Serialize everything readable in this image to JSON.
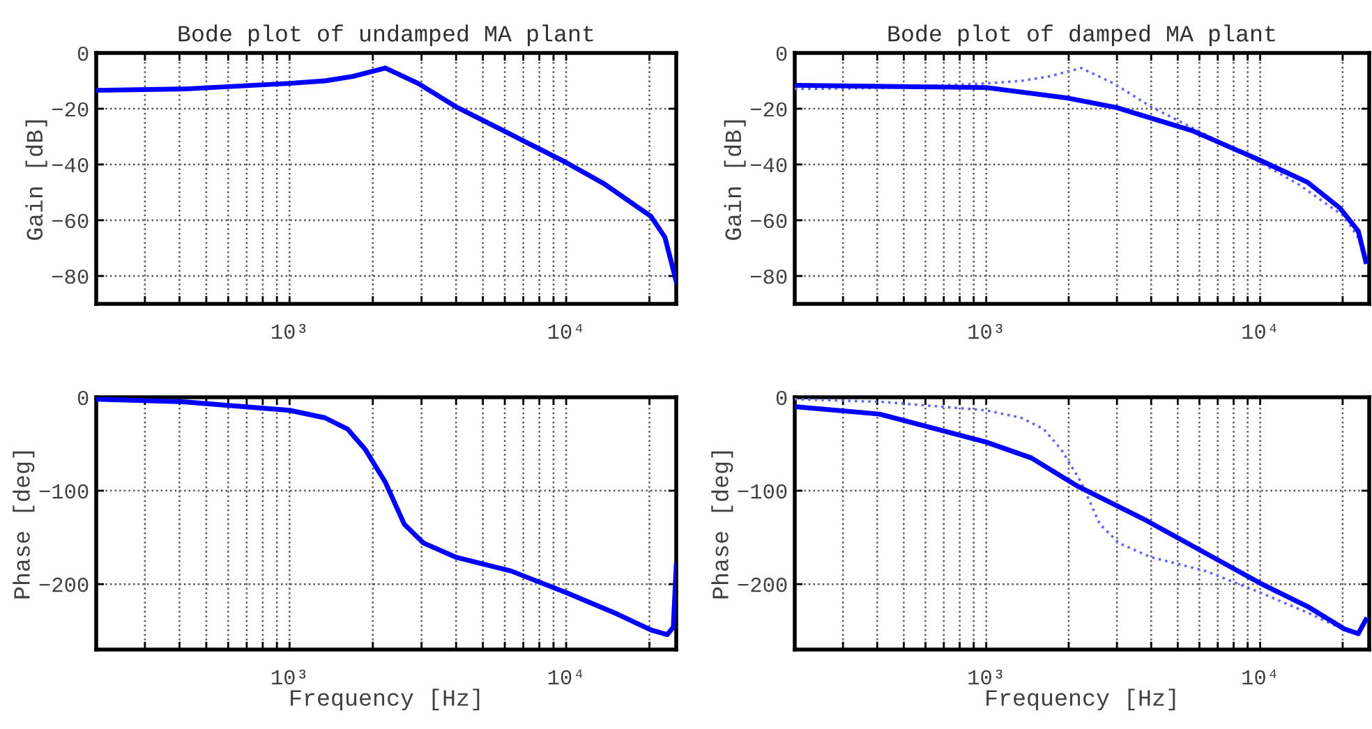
{
  "chart_data": [
    {
      "type": "line",
      "title": "Bode plot of undamped MA plant",
      "ylabel": "Gain [dB]",
      "log": "x",
      "grid": true,
      "legend": false,
      "xlim": [
        200,
        25000
      ],
      "ylim": [
        -90,
        0
      ],
      "yticks": [
        -80,
        -60,
        -40,
        -20,
        0
      ],
      "xticks": [
        {
          "value": 300,
          "label": null
        },
        {
          "value": 400,
          "label": null
        },
        {
          "value": 500,
          "label": null
        },
        {
          "value": 600,
          "label": null
        },
        {
          "value": 700,
          "label": null
        },
        {
          "value": 800,
          "label": null
        },
        {
          "value": 900,
          "label": null
        },
        {
          "value": 1000,
          "label": "10³"
        },
        {
          "value": 2000,
          "label": null
        },
        {
          "value": 3000,
          "label": null
        },
        {
          "value": 4000,
          "label": null
        },
        {
          "value": 5000,
          "label": null
        },
        {
          "value": 6000,
          "label": null
        },
        {
          "value": 7000,
          "label": null
        },
        {
          "value": 8000,
          "label": null
        },
        {
          "value": 9000,
          "label": null
        },
        {
          "value": 10000,
          "label": "10⁴"
        },
        {
          "value": 20000,
          "label": null
        }
      ],
      "series": [
        {
          "color": "#0000ff",
          "line_style": "solid",
          "x": [
            200,
            420,
            1000,
            1343,
            1694,
            2220,
            2915,
            3980,
            6330,
            10000,
            13700,
            20250,
            22750,
            25000
          ],
          "values": [
            -13.4,
            -12.9,
            -10.9,
            -10.0,
            -8.4,
            -5.4,
            -10.9,
            -19.2,
            -29.3,
            -39.3,
            -46.9,
            -58.6,
            -66.1,
            -82
          ]
        }
      ]
    },
    {
      "type": "line",
      "title": "Bode plot of damped MA plant",
      "ylabel": "Gain [dB]",
      "log": "x",
      "grid": true,
      "legend": false,
      "xlim": [
        200,
        25000
      ],
      "ylim": [
        -90,
        0
      ],
      "yticks": [
        -80,
        -60,
        -40,
        -20,
        0
      ],
      "xticks": [
        {
          "value": 300,
          "label": null
        },
        {
          "value": 400,
          "label": null
        },
        {
          "value": 500,
          "label": null
        },
        {
          "value": 600,
          "label": null
        },
        {
          "value": 700,
          "label": null
        },
        {
          "value": 800,
          "label": null
        },
        {
          "value": 900,
          "label": null
        },
        {
          "value": 1000,
          "label": "10³"
        },
        {
          "value": 2000,
          "label": null
        },
        {
          "value": 3000,
          "label": null
        },
        {
          "value": 4000,
          "label": null
        },
        {
          "value": 5000,
          "label": null
        },
        {
          "value": 6000,
          "label": null
        },
        {
          "value": 7000,
          "label": null
        },
        {
          "value": 8000,
          "label": null
        },
        {
          "value": 9000,
          "label": null
        },
        {
          "value": 10000,
          "label": "10⁴"
        },
        {
          "value": 20000,
          "label": null
        }
      ],
      "series": [
        {
          "color": "#6666ff",
          "line_style": "dotted",
          "x": [
            200,
            420,
            1000,
            1343,
            1694,
            2220,
            2915,
            3980,
            6330,
            10000,
            13700,
            20250,
            22750,
            24300
          ],
          "values": [
            -12.9,
            -12.6,
            -10.9,
            -10.0,
            -8.4,
            -5.4,
            -10.9,
            -19.2,
            -29.3,
            -39.3,
            -46.9,
            -58.6,
            -66.1,
            -74
          ]
        },
        {
          "color": "#0000ff",
          "line_style": "solid",
          "x": [
            200,
            1000,
            1991,
            2990,
            5660,
            10000,
            14900,
            19530,
            22800,
            24300
          ],
          "values": [
            -11.6,
            -12.4,
            -16.2,
            -19.6,
            -27.9,
            -38.5,
            -46.4,
            -55.6,
            -63.9,
            -74.8
          ]
        }
      ]
    },
    {
      "type": "line",
      "ylabel": "Phase [deg]",
      "xlabel": "Frequency [Hz]",
      "log": "x",
      "grid": true,
      "legend": false,
      "xlim": [
        200,
        25000
      ],
      "ylim": [
        -270,
        0
      ],
      "yticks": [
        -200,
        -100,
        0
      ],
      "xticks": [
        {
          "value": 300,
          "label": null
        },
        {
          "value": 400,
          "label": null
        },
        {
          "value": 500,
          "label": null
        },
        {
          "value": 600,
          "label": null
        },
        {
          "value": 700,
          "label": null
        },
        {
          "value": 800,
          "label": null
        },
        {
          "value": 900,
          "label": null
        },
        {
          "value": 1000,
          "label": "10³"
        },
        {
          "value": 2000,
          "label": null
        },
        {
          "value": 3000,
          "label": null
        },
        {
          "value": 4000,
          "label": null
        },
        {
          "value": 5000,
          "label": null
        },
        {
          "value": 6000,
          "label": null
        },
        {
          "value": 7000,
          "label": null
        },
        {
          "value": 8000,
          "label": null
        },
        {
          "value": 9000,
          "label": null
        },
        {
          "value": 10000,
          "label": "10⁴"
        },
        {
          "value": 20000,
          "label": null
        }
      ],
      "series": [
        {
          "color": "#0000ff",
          "line_style": "solid",
          "x": [
            200,
            420,
            1000,
            1343,
            1620,
            1880,
            2220,
            2600,
            3050,
            3980,
            6330,
            10000,
            15300,
            20250,
            23200,
            24400,
            25000
          ],
          "values": [
            -2,
            -5,
            -14,
            -22,
            -34,
            -56,
            -91,
            -136,
            -156,
            -171,
            -186,
            -209,
            -232,
            -249,
            -254,
            -246,
            -180
          ]
        }
      ]
    },
    {
      "type": "line",
      "ylabel": "Phase [deg]",
      "xlabel": "Frequency [Hz]",
      "log": "x",
      "grid": true,
      "legend": false,
      "xlim": [
        200,
        25000
      ],
      "ylim": [
        -270,
        0
      ],
      "yticks": [
        -200,
        -100,
        0
      ],
      "xticks": [
        {
          "value": 300,
          "label": null
        },
        {
          "value": 400,
          "label": null
        },
        {
          "value": 500,
          "label": null
        },
        {
          "value": 600,
          "label": null
        },
        {
          "value": 700,
          "label": null
        },
        {
          "value": 800,
          "label": null
        },
        {
          "value": 900,
          "label": null
        },
        {
          "value": 1000,
          "label": "10³"
        },
        {
          "value": 2000,
          "label": null
        },
        {
          "value": 3000,
          "label": null
        },
        {
          "value": 4000,
          "label": null
        },
        {
          "value": 5000,
          "label": null
        },
        {
          "value": 6000,
          "label": null
        },
        {
          "value": 7000,
          "label": null
        },
        {
          "value": 8000,
          "label": null
        },
        {
          "value": 9000,
          "label": null
        },
        {
          "value": 10000,
          "label": "10⁴"
        },
        {
          "value": 20000,
          "label": null
        }
      ],
      "series": [
        {
          "color": "#6666ff",
          "line_style": "dotted",
          "x": [
            200,
            420,
            1000,
            1343,
            1620,
            1880,
            2220,
            2600,
            3050,
            3980,
            6330,
            10000,
            15300,
            20250,
            23200
          ],
          "values": [
            -2,
            -5,
            -14,
            -22,
            -34,
            -56,
            -91,
            -136,
            -156,
            -171,
            -186,
            -209,
            -232,
            -249,
            -254
          ]
        },
        {
          "color": "#0000ff",
          "line_style": "solid",
          "x": [
            200,
            407,
            1000,
            1462,
            2150,
            3845,
            10000,
            14900,
            20300,
            22800,
            24300
          ],
          "values": [
            -10,
            -18,
            -48,
            -65,
            -95,
            -132,
            -199,
            -224,
            -248,
            -253,
            -238
          ]
        }
      ]
    }
  ]
}
